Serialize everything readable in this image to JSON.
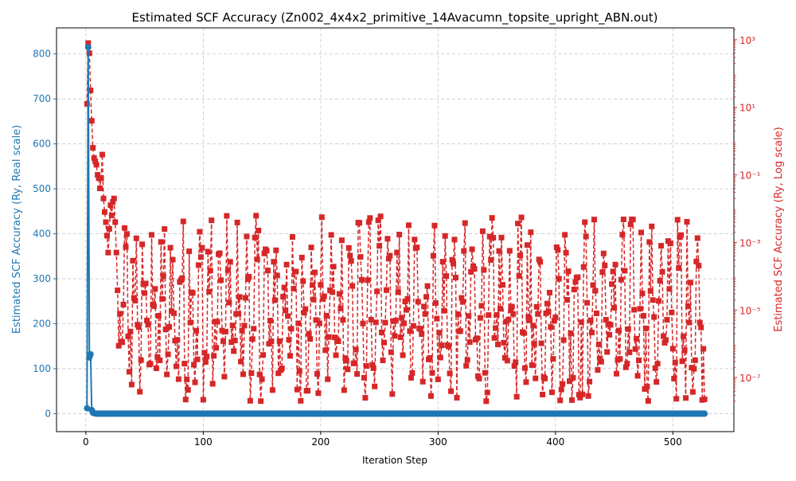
{
  "chart_data": {
    "type": "line",
    "title": "Estimated SCF Accuracy (Zn002_4x4x2_primitive_14Avacumn_topsite_upright_ABN.out)",
    "xlabel": "Iteration Step",
    "ylabel_left": "Estimated SCF Accuracy (Ry, Real scale)",
    "ylabel_right": "Estimated SCF Accuracy (Ry, Log scale)",
    "xlim": [
      -25,
      552
    ],
    "ylim_left": [
      -40,
      858
    ],
    "ylim_right_log10": [
      -8.6,
      3.35
    ],
    "x_ticks": [
      0,
      100,
      200,
      300,
      400,
      500
    ],
    "y_ticks_left": [
      0,
      100,
      200,
      300,
      400,
      500,
      600,
      700,
      800
    ],
    "y_ticks_right": [
      {
        "exp": 3,
        "label": "10³"
      },
      {
        "exp": 1,
        "label": "10¹"
      },
      {
        "exp": -1,
        "label": "10⁻¹"
      },
      {
        "exp": -3,
        "label": "10⁻³"
      },
      {
        "exp": -5,
        "label": "10⁻⁵"
      },
      {
        "exp": -7,
        "label": "10⁻⁷"
      }
    ],
    "grid": true,
    "colors": {
      "left": "#1f77b4",
      "right": "#d62728"
    },
    "n_steps": 527,
    "series": [
      {
        "axis": "left",
        "scale": "linear",
        "style": "solid line, circle markers",
        "x": [
          1,
          2,
          3,
          4,
          5,
          6,
          7,
          8
        ],
        "y": [
          12,
          815,
          125,
          132,
          8,
          2,
          1,
          0.5
        ],
        "tail_value": 0
      },
      {
        "axis": "right",
        "scale": "log",
        "style": "dashed line, square markers",
        "x": [
          1,
          2,
          3,
          4,
          5,
          6,
          7,
          8,
          9,
          10,
          11,
          12,
          13,
          14,
          15,
          16,
          17,
          18,
          19,
          20,
          21,
          22,
          23,
          24,
          25
        ],
        "log10_y": [
          1.1,
          2.9,
          2.6,
          1.5,
          0.6,
          -0.2,
          -0.5,
          -0.6,
          -0.7,
          -1.0,
          -1.1,
          -1.4,
          -1.1,
          -0.4,
          -1.7,
          -2.1,
          -2.4,
          -2.8,
          -3.3,
          -2.6,
          -1.9,
          -2.2,
          -1.8,
          -1.7,
          -2.4
        ],
        "tail_log10_range": [
          -8.0,
          -2.2
        ]
      }
    ]
  }
}
